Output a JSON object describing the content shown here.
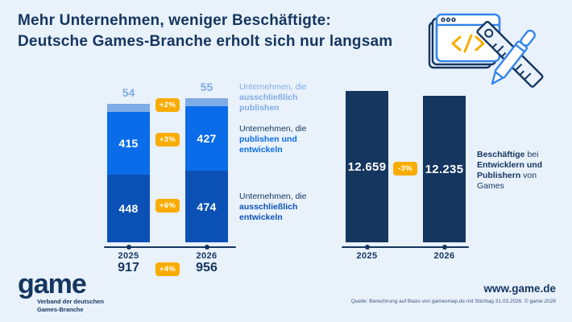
{
  "title": {
    "line1": "Mehr Unternehmen, weniger Beschäftigte:",
    "line2": "Deutsche Games-Branche erholt sich nur langsam"
  },
  "colors": {
    "background": "#E9F1FB",
    "navy": "#14365F",
    "light_blue": "#7FACE6",
    "bright_blue": "#0A6CE8",
    "mid_blue": "#0B51B5",
    "orange": "#F9AC00"
  },
  "chart_data": [
    {
      "type": "bar",
      "stacked": true,
      "categories": [
        "2025",
        "2026"
      ],
      "series": [
        {
          "name": "Unternehmen, die ausschließlich publishen",
          "values": [
            54,
            55
          ],
          "color": "#7FACE6",
          "change": "+2%"
        },
        {
          "name": "Unternehmen, die publishen und entwickeln",
          "values": [
            415,
            427
          ],
          "color": "#0A6CE8",
          "change": "+3%"
        },
        {
          "name": "Unternehmen, die ausschließlich entwickeln",
          "values": [
            448,
            474
          ],
          "color": "#0B51B5",
          "change": "+6%"
        }
      ],
      "totals": [
        "917",
        "956"
      ],
      "total_change": "+4%",
      "legend_position": "right",
      "grid": false
    },
    {
      "type": "bar",
      "categories": [
        "2025",
        "2026"
      ],
      "values": [
        12659,
        12235
      ],
      "value_labels": [
        "12.659",
        "12.235"
      ],
      "change": "-3%",
      "series_label": "Beschäftige bei Entwicklern und Publishern von Games",
      "color": "#14365F",
      "grid": false
    }
  ],
  "legend_left": [
    {
      "pre": "Unternehmen, die",
      "bold_l1": "ausschließlich",
      "bold_l2": "publishen"
    },
    {
      "pre": "Unternehmen, die",
      "bold_l1": "publishen und",
      "bold_l2": "entwickeln"
    },
    {
      "pre": "Unternehmen, die",
      "bold_l1": "ausschließlich",
      "bold_l2": "entwickeln"
    }
  ],
  "legend_right": {
    "bold1": "Beschäftige",
    "reg1": " bei",
    "bold2": "Entwicklern und",
    "bold3": "Publishern",
    "reg3": " von",
    "reg4": "Games"
  },
  "footer": {
    "logo_text": "game",
    "tagline_line1": "Verband der deutschen",
    "tagline_line2": "Games-Branche",
    "website": "www.game.de",
    "source": "Quelle: Berechnung auf Basis von gamesmap.de mit Stichtag 31.03.2026. © game 2026"
  },
  "icons": {
    "illustration": "code-window-ruler-pen"
  }
}
